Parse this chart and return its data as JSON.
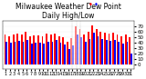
{
  "title": "Milwaukee Weather Dew Point\nDaily High/Low",
  "title_fontsize": 5.5,
  "bar_width": 0.4,
  "background_color": "#ffffff",
  "high_color": "#ff0000",
  "low_color": "#0000ff",
  "ylim": [
    -10,
    80
  ],
  "yticks": [
    0,
    10,
    20,
    30,
    40,
    50,
    60,
    70
  ],
  "ytick_fontsize": 4,
  "xtick_fontsize": 3.5,
  "days": [
    1,
    2,
    3,
    4,
    5,
    6,
    7,
    8,
    9,
    10,
    11,
    12,
    13,
    14,
    15,
    16,
    17,
    18,
    19,
    20,
    21,
    22,
    23,
    24,
    25,
    26,
    27,
    28,
    29,
    30,
    31
  ],
  "high_vals": [
    55,
    52,
    54,
    56,
    55,
    60,
    52,
    53,
    53,
    52,
    56,
    55,
    56,
    52,
    50,
    42,
    48,
    70,
    65,
    55,
    60,
    72,
    65,
    60,
    58,
    57,
    58,
    55,
    52,
    55,
    50
  ],
  "low_vals": [
    42,
    40,
    41,
    43,
    42,
    45,
    38,
    40,
    40,
    38,
    42,
    42,
    44,
    39,
    36,
    28,
    35,
    55,
    50,
    42,
    47,
    58,
    52,
    46,
    44,
    43,
    44,
    42,
    38,
    42,
    20
  ],
  "dotted_indices": [
    16,
    17,
    18
  ]
}
